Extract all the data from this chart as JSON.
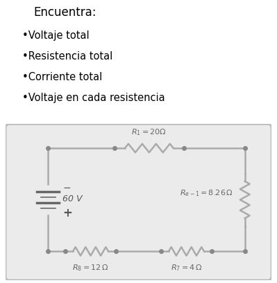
{
  "title_text": "Encuentra:",
  "bullets": [
    "•Voltaje total",
    "•Resistencia total",
    "•Corriente total",
    "•Voltaje en cada resistencia"
  ],
  "wire_color": "#aaaaaa",
  "resistor_color": "#aaaaaa",
  "label_color": "#666666",
  "r1_label": "$R_1 = 20\\Omega$",
  "r2_label": "$R_{e-1} = 8.26\\,\\Omega$",
  "r3_label": "$R_8 = 12\\,\\Omega$",
  "r4_label": "$R_7 = 4\\,\\Omega$",
  "battery_label": "60 V",
  "plus_label": "+",
  "minus_label": "−",
  "circuit_bg": "#ebebeb",
  "circuit_border": "#bbbbbb"
}
